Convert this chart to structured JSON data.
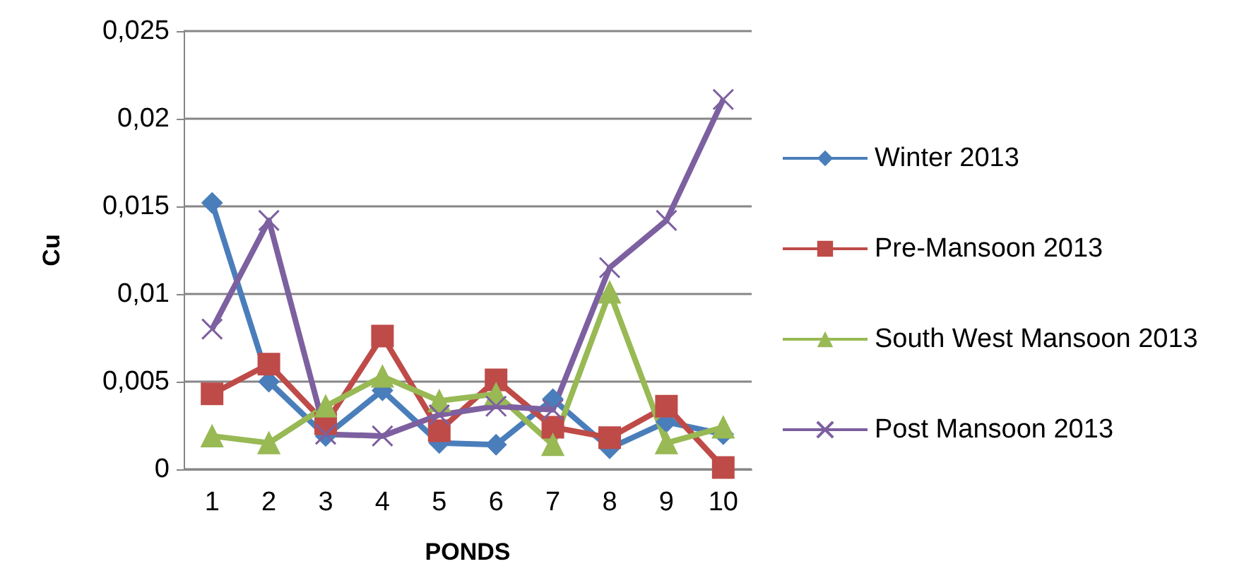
{
  "chart_data": {
    "type": "line",
    "xlabel": "PONDS",
    "ylabel": "Cu",
    "categories": [
      "1",
      "2",
      "3",
      "4",
      "5",
      "6",
      "7",
      "8",
      "9",
      "10"
    ],
    "ylim": [
      0,
      0.025
    ],
    "yticks": [
      {
        "value": 0,
        "label": "0"
      },
      {
        "value": 0.005,
        "label": "0,005"
      },
      {
        "value": 0.01,
        "label": "0,01"
      },
      {
        "value": 0.015,
        "label": "0,015"
      },
      {
        "value": 0.02,
        "label": "0,02"
      },
      {
        "value": 0.025,
        "label": "0,025"
      }
    ],
    "grid": "y",
    "legend": "right",
    "series": [
      {
        "name": "Winter 2013",
        "color": "#4a7ebb",
        "marker": "diamond",
        "values": [
          0.0152,
          0.005,
          0.0019,
          0.0045,
          0.0015,
          0.0014,
          0.004,
          0.0012,
          0.0027,
          0.002
        ]
      },
      {
        "name": "Pre-Mansoon 2013",
        "color": "#be4b48",
        "marker": "square",
        "values": [
          0.0043,
          0.006,
          0.0026,
          0.0076,
          0.0022,
          0.0051,
          0.0024,
          0.0018,
          0.0036,
          0.0001
        ]
      },
      {
        "name": "South West Mansoon 2013",
        "color": "#98b954",
        "marker": "triangle",
        "values": [
          0.0019,
          0.0015,
          0.0036,
          0.0053,
          0.0039,
          0.0043,
          0.0014,
          0.0101,
          0.0015,
          0.0024
        ]
      },
      {
        "name": "Post Mansoon 2013",
        "color": "#7d60a0",
        "marker": "cross",
        "values": [
          0.008,
          0.0142,
          0.002,
          0.0019,
          0.0031,
          0.0036,
          0.0034,
          0.0115,
          0.0142,
          0.0211
        ]
      }
    ]
  }
}
